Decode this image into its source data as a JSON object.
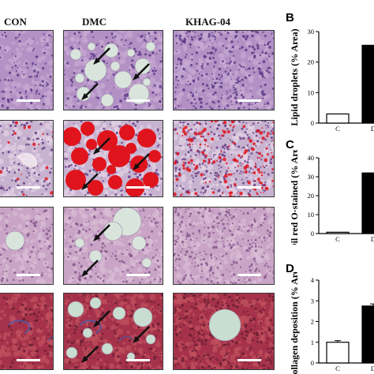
{
  "columns": [
    "CON",
    "DMC",
    "KHAG-04"
  ],
  "panel_letters": [
    "B",
    "C",
    "D"
  ],
  "row_stains": [
    {
      "bg": "#b391c4",
      "cell": "#c7aad3",
      "nucleus": "#5c3a87"
    },
    {
      "bg": "#c7b3d0",
      "cell": "#e2d2e4",
      "nucleus": "#6a3f86"
    },
    {
      "bg": "#c9a4c6",
      "cell": "#d8bcd4",
      "nucleus": "#8a5a8f"
    },
    {
      "bg": "#a5324a",
      "cell": "#c0505e",
      "nucleus": "#6a1f33"
    }
  ],
  "colors": {
    "bar_control": "#ffffff",
    "bar_dmc": "#000000",
    "oil_red": "#e0141c",
    "collagen_blue": "#4c5aa8"
  },
  "chart_data": [
    {
      "type": "bar",
      "categories": [
        "C",
        "D"
      ],
      "values": [
        3,
        25.5
      ],
      "ylabel": "Lipid droplets (% Area)",
      "ylim": [
        0,
        30
      ],
      "yticks": [
        0,
        10,
        20,
        30
      ]
    },
    {
      "type": "bar",
      "categories": [
        "C",
        "D"
      ],
      "values": [
        0.7,
        32
      ],
      "ylabel": "Oil red O-stained (% Area)",
      "ylim": [
        0,
        40
      ],
      "yticks": [
        0,
        10,
        20,
        30,
        40
      ]
    },
    {
      "type": "bar",
      "categories": [
        "C",
        "D"
      ],
      "values": [
        1.0,
        2.75
      ],
      "errors": [
        0.08,
        0.1
      ],
      "ylabel": "Collagen deposition (% Area)",
      "ylim": [
        0,
        4
      ],
      "yticks": [
        0,
        1,
        2,
        3,
        4
      ]
    }
  ]
}
